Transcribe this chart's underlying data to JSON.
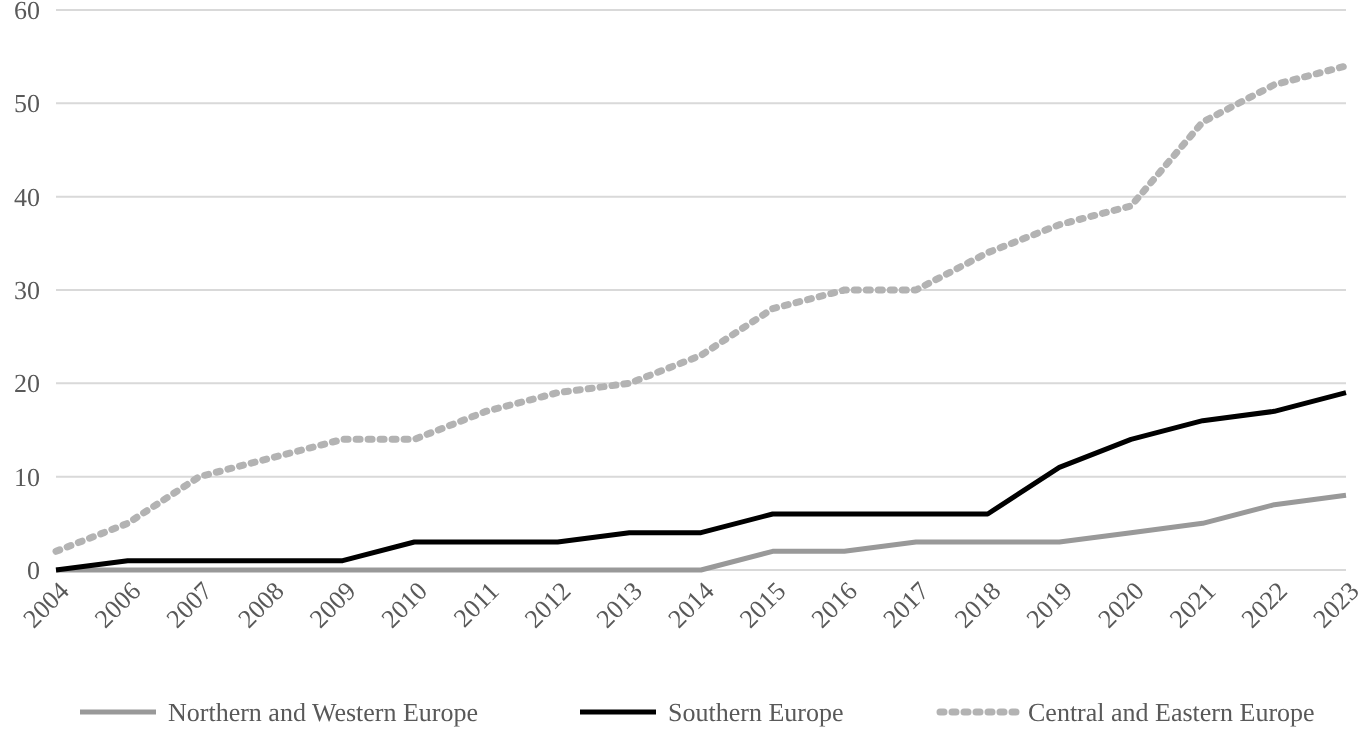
{
  "chart_data": {
    "type": "line",
    "categories": [
      "2004",
      "2006",
      "2007",
      "2008",
      "2009",
      "2010",
      "2011",
      "2012",
      "2013",
      "2014",
      "2015",
      "2016",
      "2017",
      "2018",
      "2019",
      "2020",
      "2021",
      "2022",
      "2023"
    ],
    "series": [
      {
        "name": "Northern and Western Europe",
        "color": "#999999",
        "line_style": "solid",
        "values": [
          0,
          0,
          0,
          0,
          0,
          0,
          0,
          0,
          0,
          0,
          2,
          2,
          3,
          3,
          3,
          4,
          5,
          7,
          8
        ]
      },
      {
        "name": "Southern Europe",
        "color": "#000000",
        "line_style": "solid",
        "values": [
          0,
          1,
          1,
          1,
          1,
          3,
          3,
          3,
          4,
          4,
          6,
          6,
          6,
          6,
          11,
          14,
          16,
          17,
          19
        ]
      },
      {
        "name": "Central and Eastern Europe",
        "color": "#b3b3b3",
        "line_style": "dotted",
        "values": [
          2,
          5,
          10,
          12,
          14,
          14,
          17,
          19,
          20,
          23,
          28,
          30,
          30,
          34,
          37,
          39,
          48,
          52,
          54
        ]
      }
    ],
    "ylim": [
      0,
      60
    ],
    "yticks": [
      0,
      10,
      20,
      30,
      40,
      50,
      60
    ],
    "grid": "y",
    "legend": "bottom",
    "marker": "none"
  }
}
